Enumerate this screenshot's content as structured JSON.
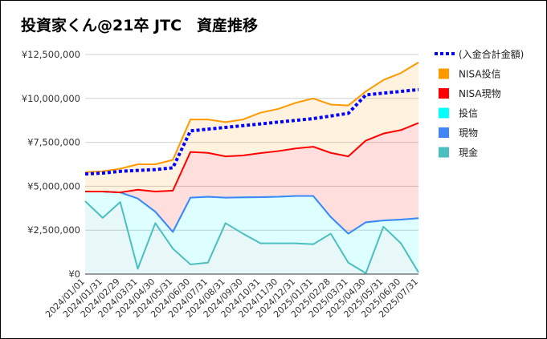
{
  "chart_data": {
    "type": "area",
    "title": "投資家くん@21卒 JTC　資産推移",
    "xlabel": "",
    "ylabel": "",
    "ylim": [
      0,
      12500000
    ],
    "yticks": [
      0,
      2500000,
      5000000,
      7500000,
      10000000,
      12500000
    ],
    "ytick_labels": [
      "¥0",
      "¥2,500,000",
      "¥5,000,000",
      "¥7,500,000",
      "¥10,000,000",
      "¥12,500,000"
    ],
    "grid": true,
    "legend_position": "right",
    "categories": [
      "2024/01/01",
      "2024/01/31",
      "2024/02/29",
      "2024/03/31",
      "2024/04/30",
      "2024/05/31",
      "2024/06/30",
      "2024/07/31",
      "2024/08/31",
      "2024/09/30",
      "2024/10/31",
      "2024/11/30",
      "2024/12/31",
      "2025/01/31",
      "2025/02/28",
      "2025/03/31",
      "2025/04/30",
      "2025/05/31",
      "2025/06/30",
      "2025/07/31"
    ],
    "stack_series": [
      {
        "name": "現金",
        "color": "#4BBFBF",
        "values": [
          4150000,
          3200000,
          4100000,
          300000,
          2900000,
          1450000,
          550000,
          650000,
          2900000,
          2300000,
          1750000,
          1750000,
          1750000,
          1700000,
          2300000,
          650000,
          50000,
          2700000,
          1750000,
          100000
        ]
      },
      {
        "name": "投信",
        "color": "#00FFFF",
        "values": [
          550000,
          1500000,
          550000,
          4000000,
          650000,
          950000,
          3800000,
          3750000,
          1450000,
          2070000,
          2630000,
          2650000,
          2700000,
          2750000,
          950000,
          1650000,
          2900000,
          350000,
          1350000,
          3080000
        ]
      },
      {
        "name": "現物",
        "color": "#4285F4",
        "values": [
          0,
          0,
          0,
          0,
          0,
          0,
          0,
          0,
          0,
          0,
          0,
          0,
          0,
          0,
          0,
          0,
          0,
          0,
          0,
          0
        ]
      },
      {
        "name": "NISA現物",
        "color": "#FF0000",
        "values": [
          0,
          0,
          0,
          500000,
          1150000,
          2350000,
          2600000,
          2500000,
          2350000,
          2380000,
          2510000,
          2600000,
          2700000,
          2800000,
          3650000,
          4400000,
          4650000,
          4950000,
          5100000,
          5420000
        ]
      },
      {
        "name": "NISA投信",
        "color": "#FF9900",
        "values": [
          1100000,
          1150000,
          1350000,
          1450000,
          1550000,
          1750000,
          1850000,
          1900000,
          1950000,
          2050000,
          2300000,
          2400000,
          2600000,
          2750000,
          2750000,
          2900000,
          2800000,
          3050000,
          3250000,
          3450000
        ]
      }
    ],
    "line_series": {
      "name": "(入金合計金額)",
      "color": "#0000FF",
      "values": [
        5700000,
        5750000,
        5850000,
        5900000,
        5950000,
        6050000,
        8150000,
        8250000,
        8350000,
        8450000,
        8550000,
        8650000,
        8750000,
        8850000,
        9000000,
        9150000,
        10200000,
        10300000,
        10400000,
        10500000
      ]
    },
    "legend": [
      {
        "name": "(入金合計金額)",
        "color": "#0000FF",
        "style": "dotted-line"
      },
      {
        "name": "NISA投信",
        "color": "#FF9900",
        "style": "swatch"
      },
      {
        "name": "NISA現物",
        "color": "#FF0000",
        "style": "swatch"
      },
      {
        "name": "投信",
        "color": "#00FFFF",
        "style": "swatch"
      },
      {
        "name": "現物",
        "color": "#4285F4",
        "style": "swatch"
      },
      {
        "name": "現金",
        "color": "#4BBFBF",
        "style": "swatch"
      }
    ]
  }
}
